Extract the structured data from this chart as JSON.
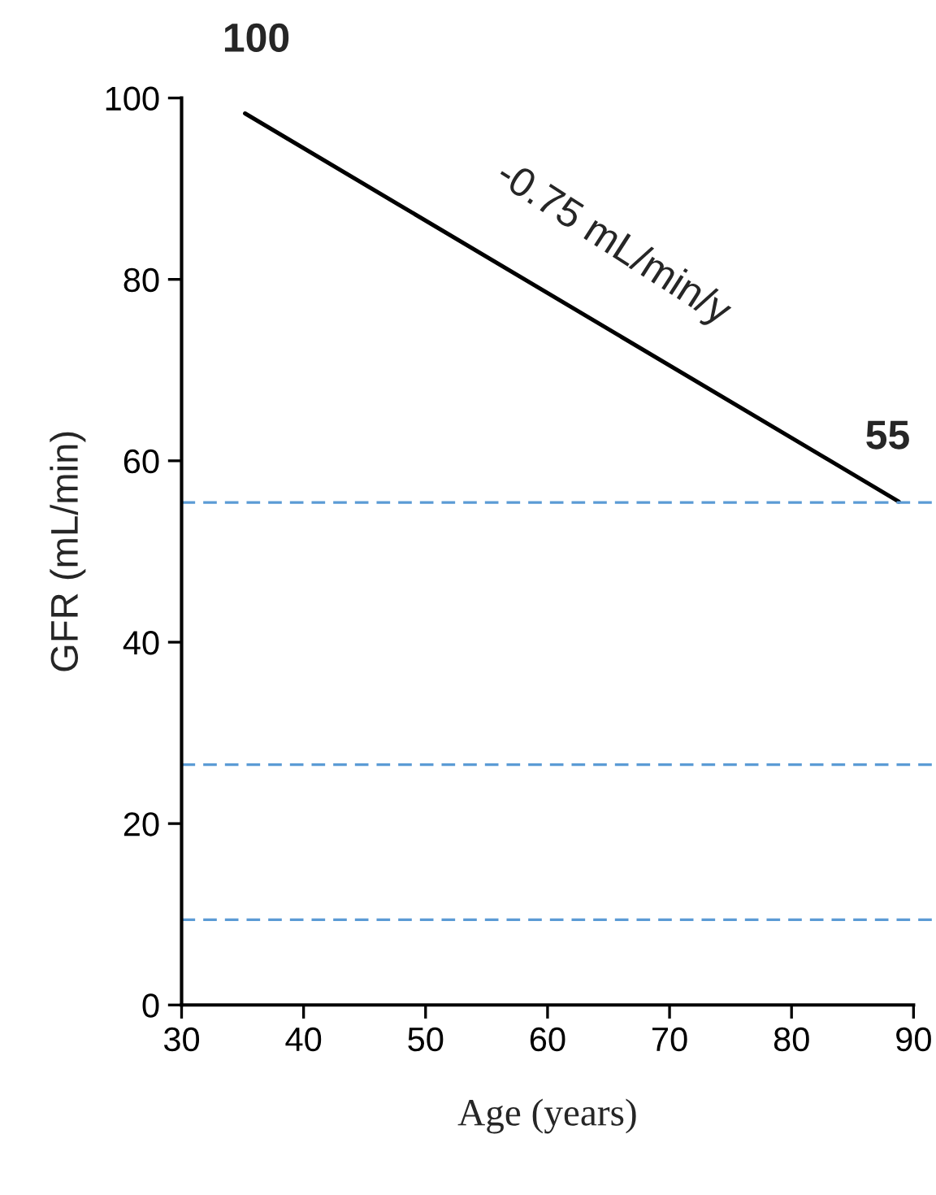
{
  "chart_data": {
    "type": "line",
    "xlabel": "Age (years)",
    "ylabel": "GFR (mL/min)",
    "x": [
      35.2,
      88.8
    ],
    "series": [
      {
        "color": "#000000",
        "values": [
          98.3,
          55.5
        ]
      }
    ],
    "xlim": [
      30,
      90
    ],
    "xticks": [
      30,
      40,
      50,
      60,
      70,
      80,
      90
    ],
    "ylim": [
      0,
      100
    ],
    "yticks": [
      0,
      20,
      40,
      60,
      80,
      100
    ],
    "ref_lines": [
      {
        "axis": "y",
        "value": 55.4,
        "color": "#5b9bd5",
        "line_style": "dashed"
      },
      {
        "axis": "y",
        "value": 26.5,
        "color": "#5b9bd5",
        "line_style": "dashed"
      },
      {
        "axis": "y",
        "value": 9.4,
        "color": "#5b9bd5",
        "line_style": "dashed"
      }
    ],
    "annotations": [
      {
        "text": "100",
        "x": 35.2,
        "y": 98.3
      },
      {
        "text": "55",
        "x": 88.8,
        "y": 55.5
      },
      "-0.75 mL/min/y"
    ],
    "grid": false,
    "legend": false
  }
}
